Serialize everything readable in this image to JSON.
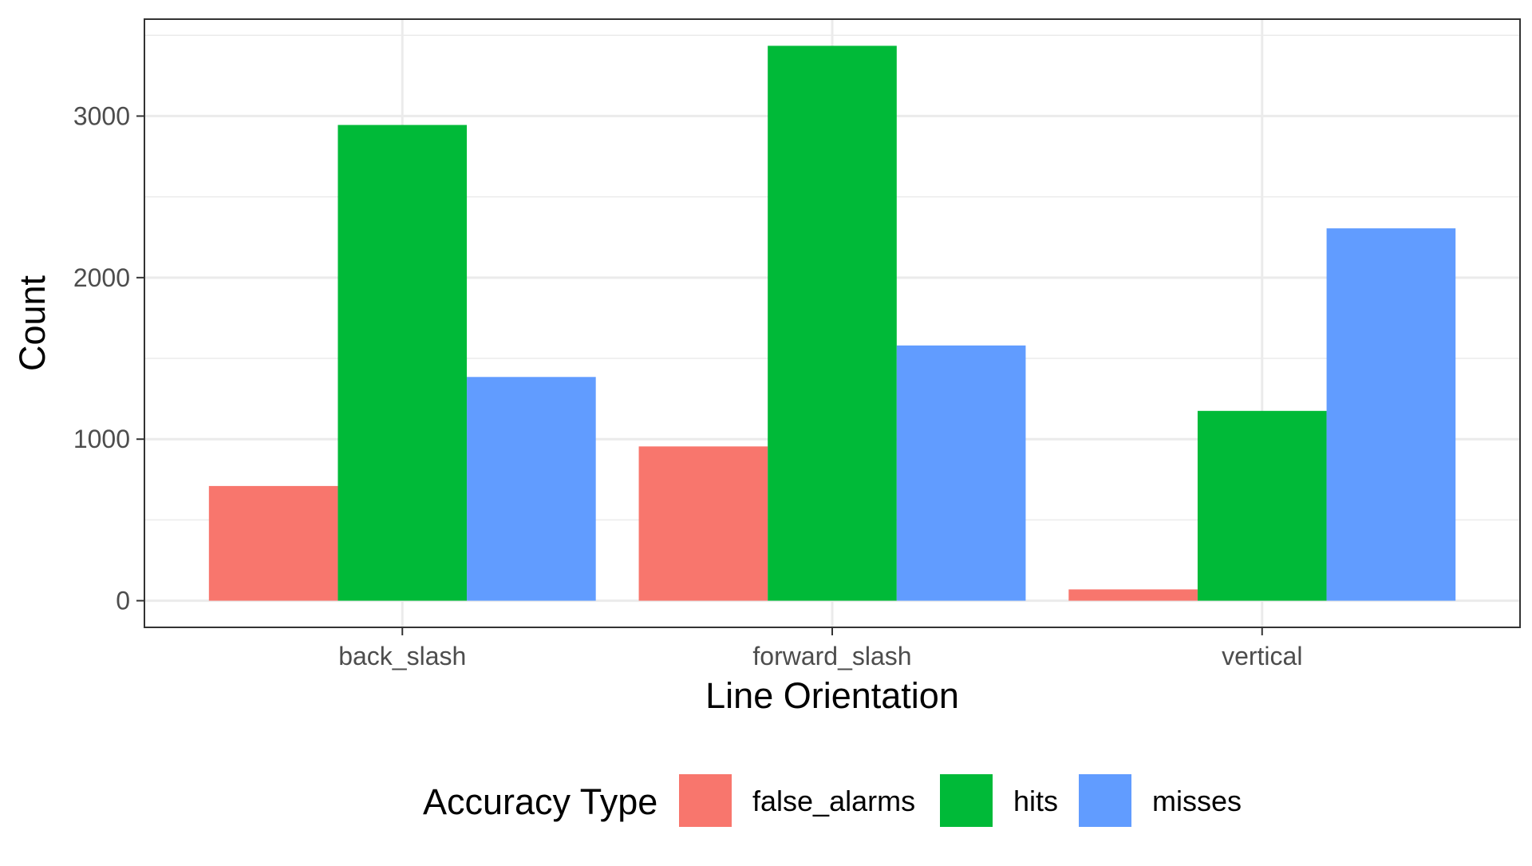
{
  "chart_data": {
    "type": "bar",
    "xlabel": "Line Orientation",
    "ylabel": "Count",
    "categories": [
      "back_slash",
      "forward_slash",
      "vertical"
    ],
    "series": [
      {
        "name": "false_alarms",
        "color": "#F8766D",
        "values": [
          710,
          955,
          70
        ]
      },
      {
        "name": "hits",
        "color": "#00BA38",
        "values": [
          2945,
          3435,
          1175
        ]
      },
      {
        "name": "misses",
        "color": "#619CFF",
        "values": [
          1385,
          1580,
          2305
        ]
      }
    ],
    "ylim": [
      -165,
      3600
    ],
    "yticks": [
      0,
      1000,
      2000,
      3000
    ],
    "ytick_labels": [
      "0",
      "1000",
      "2000",
      "3000"
    ],
    "grid": true,
    "legend": {
      "title": "Accuracy Type",
      "position": "bottom",
      "entries": [
        "false_alarms",
        "hits",
        "misses"
      ]
    }
  }
}
